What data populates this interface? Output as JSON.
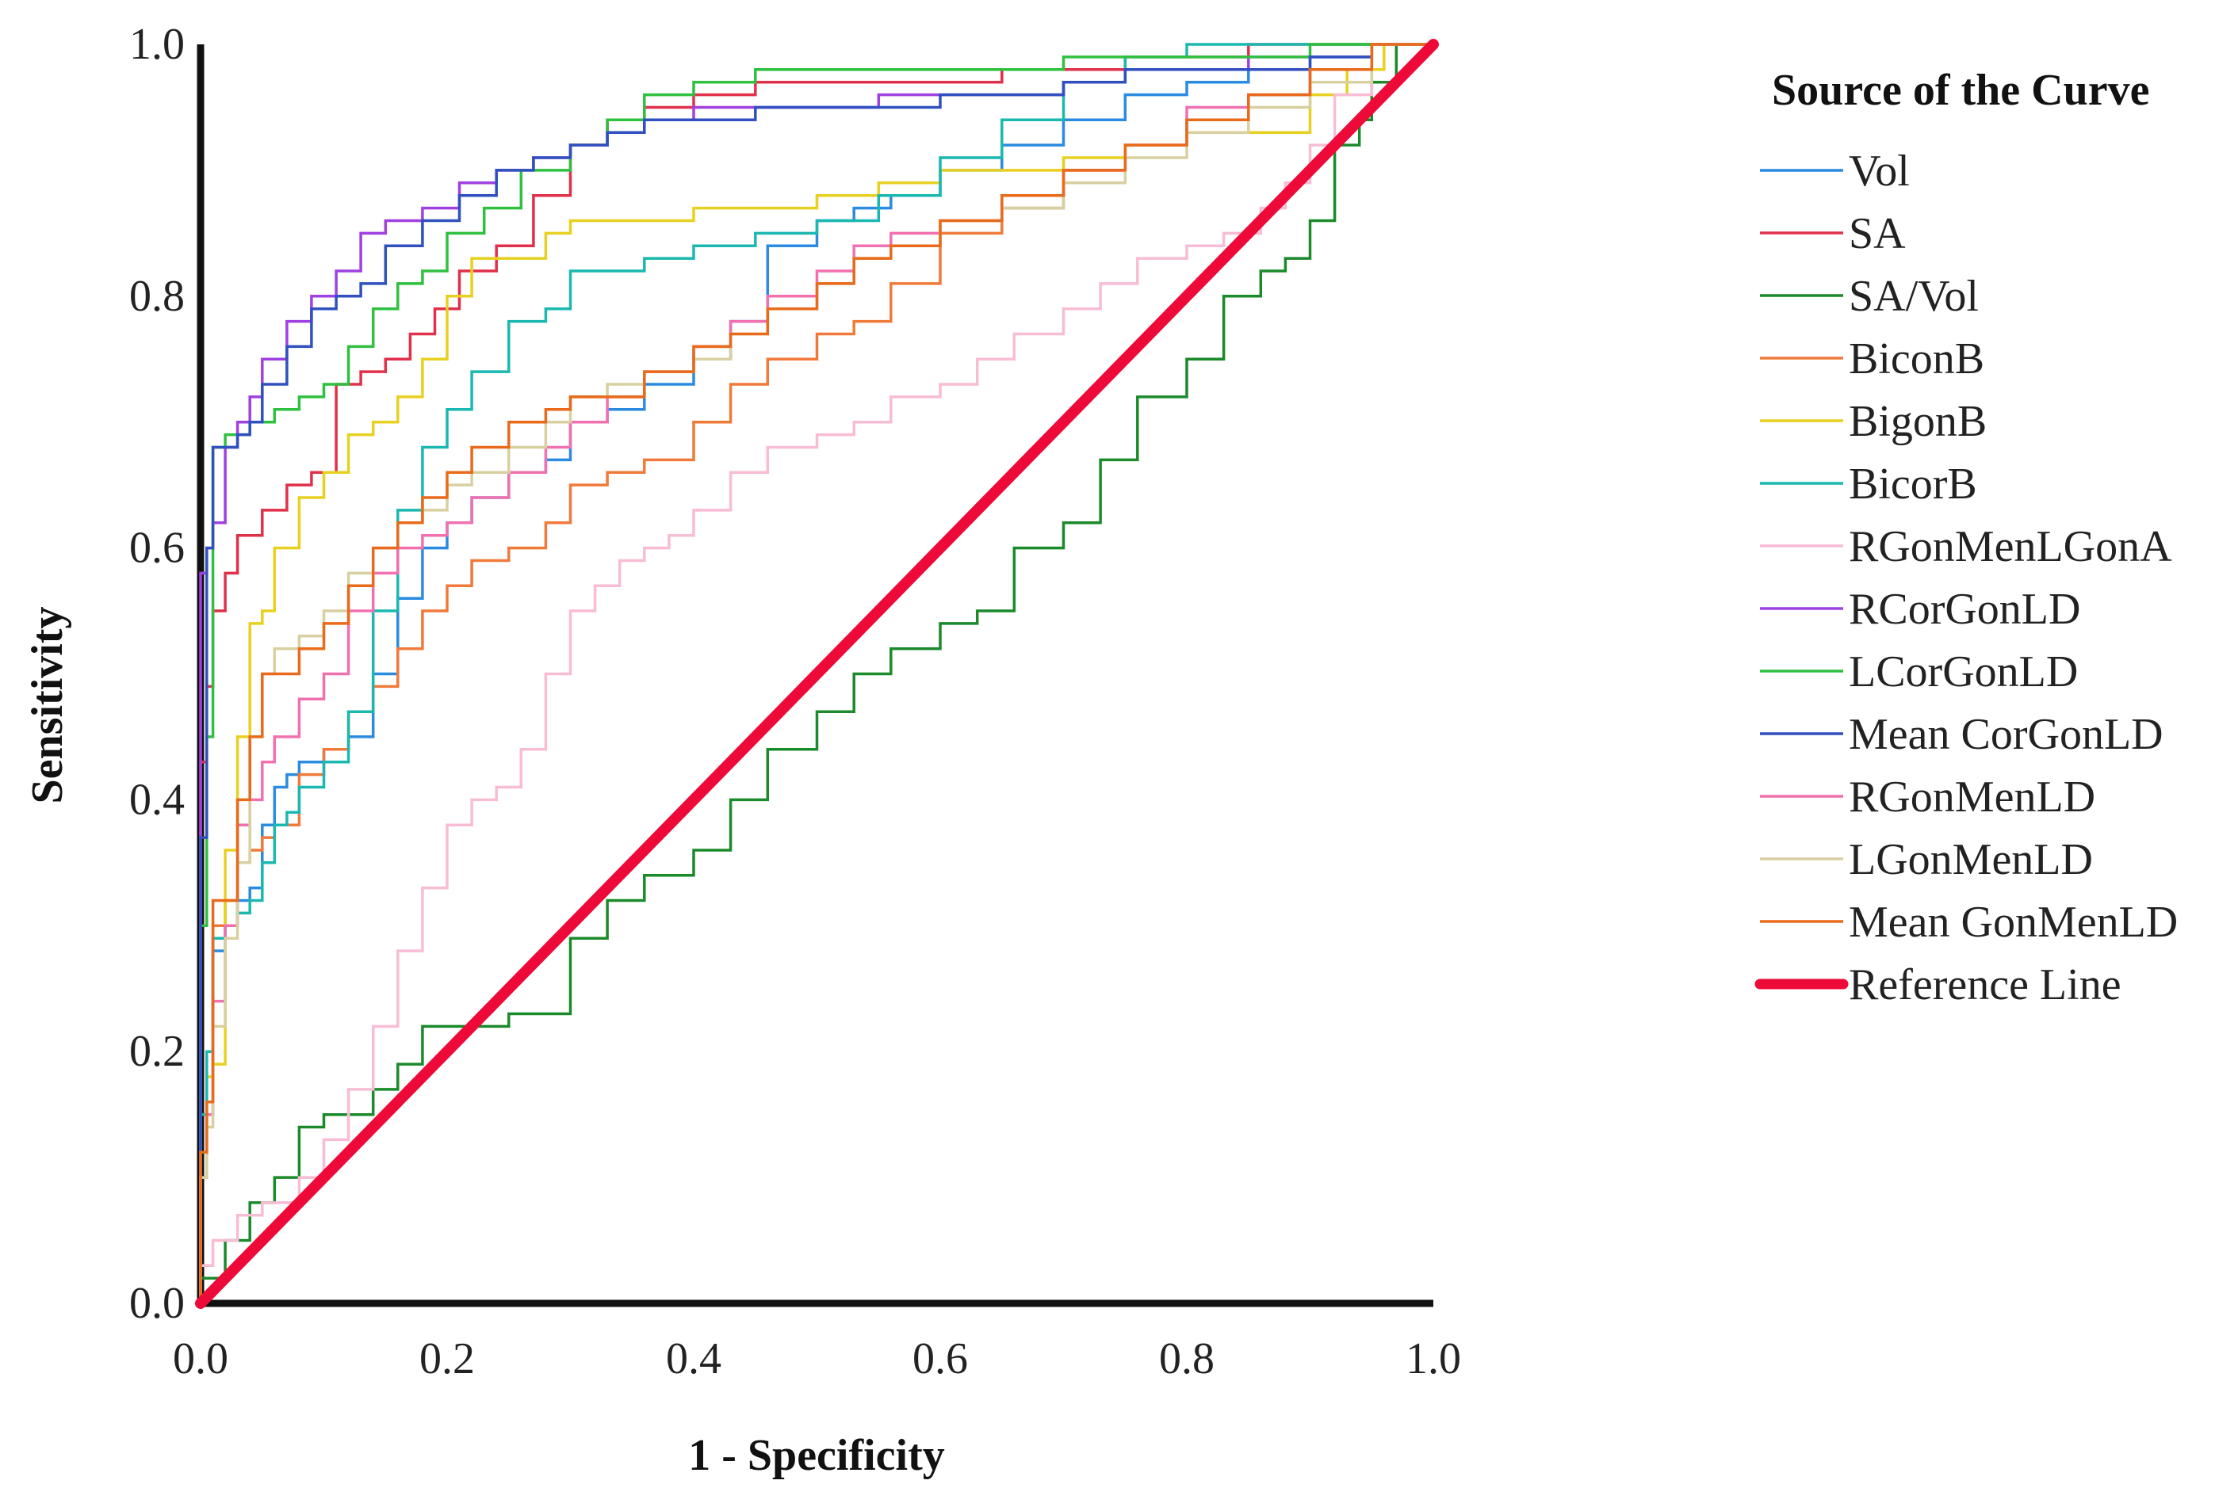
{
  "chart_data": {
    "type": "line",
    "title": "",
    "xlabel": "1 - Specificity",
    "ylabel": "Sensitivity",
    "xlim": [
      0,
      1
    ],
    "ylim": [
      0,
      1
    ],
    "x_ticks": [
      "0.0",
      "0.2",
      "0.4",
      "0.6",
      "0.8",
      "1.0"
    ],
    "y_ticks": [
      "0.0",
      "0.2",
      "0.4",
      "0.6",
      "0.8",
      "1.0"
    ],
    "legend_title": "Source of the Curve",
    "legend_position": "right",
    "series": [
      {
        "name": "Vol",
        "color": "#2a8be0",
        "x": [
          0,
          0.005,
          0.01,
          0.02,
          0.03,
          0.04,
          0.05,
          0.06,
          0.07,
          0.08,
          0.1,
          0.12,
          0.14,
          0.16,
          0.18,
          0.2,
          0.22,
          0.25,
          0.28,
          0.3,
          0.33,
          0.36,
          0.4,
          0.43,
          0.46,
          0.5,
          0.53,
          0.56,
          0.6,
          0.65,
          0.7,
          0.75,
          0.8,
          0.85,
          0.9,
          0.95,
          1.0
        ],
        "y": [
          0,
          0.12,
          0.15,
          0.28,
          0.3,
          0.32,
          0.33,
          0.38,
          0.41,
          0.42,
          0.43,
          0.44,
          0.45,
          0.5,
          0.56,
          0.6,
          0.62,
          0.64,
          0.66,
          0.67,
          0.7,
          0.71,
          0.73,
          0.75,
          0.78,
          0.84,
          0.86,
          0.87,
          0.88,
          0.9,
          0.92,
          0.94,
          0.96,
          0.97,
          0.98,
          0.99,
          1.0
        ]
      },
      {
        "name": "SA",
        "color": "#e0304a",
        "x": [
          0,
          0.005,
          0.01,
          0.02,
          0.03,
          0.05,
          0.07,
          0.09,
          0.11,
          0.13,
          0.15,
          0.17,
          0.19,
          0.21,
          0.24,
          0.27,
          0.3,
          0.33,
          0.36,
          0.4,
          0.45,
          0.5,
          0.55,
          0.6,
          0.65,
          0.7,
          0.75,
          0.8,
          0.85,
          0.9,
          0.95,
          1.0
        ],
        "y": [
          0,
          0.43,
          0.49,
          0.55,
          0.58,
          0.61,
          0.63,
          0.65,
          0.66,
          0.73,
          0.74,
          0.75,
          0.77,
          0.79,
          0.82,
          0.84,
          0.88,
          0.92,
          0.94,
          0.95,
          0.96,
          0.97,
          0.97,
          0.97,
          0.97,
          0.98,
          0.98,
          0.99,
          0.99,
          1.0,
          1.0,
          1.0
        ]
      },
      {
        "name": "SA/Vol",
        "color": "#1a8a2a",
        "x": [
          0,
          0.02,
          0.04,
          0.06,
          0.08,
          0.1,
          0.12,
          0.14,
          0.16,
          0.18,
          0.2,
          0.25,
          0.3,
          0.33,
          0.36,
          0.4,
          0.43,
          0.46,
          0.5,
          0.53,
          0.56,
          0.6,
          0.63,
          0.66,
          0.7,
          0.73,
          0.76,
          0.8,
          0.83,
          0.86,
          0.88,
          0.9,
          0.92,
          0.94,
          0.95,
          0.97,
          1.0
        ],
        "y": [
          0,
          0.02,
          0.05,
          0.08,
          0.1,
          0.14,
          0.15,
          0.15,
          0.17,
          0.19,
          0.22,
          0.22,
          0.23,
          0.29,
          0.32,
          0.34,
          0.36,
          0.4,
          0.44,
          0.47,
          0.5,
          0.52,
          0.54,
          0.55,
          0.6,
          0.62,
          0.67,
          0.72,
          0.75,
          0.8,
          0.82,
          0.83,
          0.86,
          0.92,
          0.94,
          0.97,
          1.0
        ]
      },
      {
        "name": "BiconB",
        "color": "#f07a3a",
        "x": [
          0,
          0.005,
          0.01,
          0.02,
          0.03,
          0.04,
          0.05,
          0.06,
          0.08,
          0.1,
          0.12,
          0.14,
          0.16,
          0.18,
          0.2,
          0.22,
          0.25,
          0.28,
          0.3,
          0.33,
          0.36,
          0.4,
          0.43,
          0.46,
          0.5,
          0.53,
          0.56,
          0.6,
          0.65,
          0.7,
          0.75,
          0.8,
          0.85,
          0.9,
          0.95,
          1.0
        ],
        "y": [
          0,
          0.12,
          0.16,
          0.3,
          0.32,
          0.35,
          0.36,
          0.37,
          0.38,
          0.42,
          0.44,
          0.47,
          0.49,
          0.52,
          0.55,
          0.57,
          0.59,
          0.6,
          0.62,
          0.65,
          0.66,
          0.67,
          0.7,
          0.73,
          0.75,
          0.77,
          0.78,
          0.81,
          0.85,
          0.87,
          0.9,
          0.92,
          0.94,
          0.96,
          0.98,
          1.0
        ]
      },
      {
        "name": "BigonB",
        "color": "#e8d020",
        "x": [
          0,
          0.005,
          0.01,
          0.02,
          0.03,
          0.04,
          0.05,
          0.06,
          0.08,
          0.1,
          0.12,
          0.14,
          0.16,
          0.18,
          0.2,
          0.22,
          0.25,
          0.28,
          0.3,
          0.33,
          0.36,
          0.4,
          0.45,
          0.5,
          0.55,
          0.6,
          0.65,
          0.7,
          0.75,
          0.8,
          0.85,
          0.9,
          0.93,
          0.96,
          1.0
        ],
        "y": [
          0,
          0.15,
          0.18,
          0.19,
          0.36,
          0.45,
          0.54,
          0.55,
          0.6,
          0.64,
          0.66,
          0.69,
          0.7,
          0.72,
          0.75,
          0.8,
          0.83,
          0.83,
          0.85,
          0.86,
          0.86,
          0.86,
          0.87,
          0.87,
          0.88,
          0.89,
          0.9,
          0.9,
          0.91,
          0.92,
          0.93,
          0.93,
          0.96,
          0.98,
          1.0
        ]
      },
      {
        "name": "BicorB",
        "color": "#1ab8b0",
        "x": [
          0,
          0.005,
          0.01,
          0.02,
          0.03,
          0.04,
          0.05,
          0.06,
          0.07,
          0.08,
          0.1,
          0.12,
          0.14,
          0.16,
          0.18,
          0.2,
          0.22,
          0.25,
          0.28,
          0.3,
          0.33,
          0.36,
          0.4,
          0.45,
          0.5,
          0.55,
          0.6,
          0.65,
          0.7,
          0.75,
          0.8,
          0.85,
          0.9,
          0.95,
          1.0
        ],
        "y": [
          0,
          0.15,
          0.2,
          0.29,
          0.3,
          0.31,
          0.32,
          0.35,
          0.38,
          0.39,
          0.41,
          0.43,
          0.47,
          0.55,
          0.63,
          0.68,
          0.71,
          0.74,
          0.78,
          0.79,
          0.82,
          0.82,
          0.83,
          0.84,
          0.85,
          0.86,
          0.88,
          0.91,
          0.94,
          0.97,
          0.99,
          1.0,
          1.0,
          1.0,
          1.0
        ]
      },
      {
        "name": "RGonMenLGonA",
        "color": "#f8bcd4",
        "x": [
          0,
          0.01,
          0.03,
          0.05,
          0.08,
          0.1,
          0.12,
          0.14,
          0.16,
          0.18,
          0.2,
          0.22,
          0.24,
          0.26,
          0.28,
          0.3,
          0.32,
          0.34,
          0.36,
          0.38,
          0.4,
          0.43,
          0.46,
          0.5,
          0.53,
          0.56,
          0.6,
          0.63,
          0.66,
          0.7,
          0.73,
          0.76,
          0.8,
          0.83,
          0.86,
          0.88,
          0.9,
          0.92,
          0.95,
          1.0
        ],
        "y": [
          0,
          0.03,
          0.05,
          0.07,
          0.08,
          0.1,
          0.13,
          0.17,
          0.22,
          0.28,
          0.33,
          0.38,
          0.4,
          0.41,
          0.44,
          0.5,
          0.55,
          0.57,
          0.59,
          0.6,
          0.61,
          0.63,
          0.66,
          0.68,
          0.69,
          0.7,
          0.72,
          0.73,
          0.75,
          0.77,
          0.79,
          0.81,
          0.83,
          0.84,
          0.85,
          0.87,
          0.89,
          0.92,
          0.96,
          1.0
        ]
      },
      {
        "name": "RCorGonLD",
        "color": "#a040e0",
        "x": [
          0,
          0.005,
          0.01,
          0.02,
          0.03,
          0.04,
          0.05,
          0.07,
          0.09,
          0.11,
          0.13,
          0.15,
          0.18,
          0.21,
          0.24,
          0.27,
          0.3,
          0.33,
          0.36,
          0.4,
          0.45,
          0.5,
          0.55,
          0.6,
          0.65,
          0.7,
          0.75,
          0.8,
          0.85,
          0.9,
          0.95,
          1.0
        ],
        "y": [
          0,
          0.58,
          0.6,
          0.62,
          0.68,
          0.7,
          0.72,
          0.75,
          0.78,
          0.8,
          0.82,
          0.85,
          0.86,
          0.87,
          0.89,
          0.9,
          0.91,
          0.92,
          0.93,
          0.94,
          0.95,
          0.95,
          0.95,
          0.96,
          0.96,
          0.96,
          0.97,
          0.98,
          0.98,
          0.99,
          0.99,
          1.0
        ]
      },
      {
        "name": "LCorGonLD",
        "color": "#30c040",
        "x": [
          0,
          0.005,
          0.01,
          0.02,
          0.04,
          0.06,
          0.08,
          0.1,
          0.12,
          0.14,
          0.16,
          0.18,
          0.2,
          0.23,
          0.26,
          0.3,
          0.33,
          0.36,
          0.4,
          0.45,
          0.5,
          0.55,
          0.6,
          0.65,
          0.7,
          0.75,
          0.8,
          0.85,
          0.9,
          0.95,
          1.0
        ],
        "y": [
          0,
          0.3,
          0.45,
          0.68,
          0.69,
          0.7,
          0.71,
          0.72,
          0.73,
          0.76,
          0.79,
          0.81,
          0.82,
          0.85,
          0.87,
          0.9,
          0.92,
          0.94,
          0.96,
          0.97,
          0.98,
          0.98,
          0.98,
          0.98,
          0.98,
          0.99,
          0.99,
          0.99,
          0.99,
          1.0,
          1.0
        ]
      },
      {
        "name": "Mean CorGonLD",
        "color": "#3050c0",
        "x": [
          0,
          0.005,
          0.01,
          0.02,
          0.03,
          0.04,
          0.05,
          0.07,
          0.09,
          0.11,
          0.13,
          0.15,
          0.18,
          0.21,
          0.24,
          0.27,
          0.3,
          0.33,
          0.36,
          0.4,
          0.45,
          0.5,
          0.55,
          0.6,
          0.65,
          0.7,
          0.75,
          0.8,
          0.85,
          0.9,
          0.95,
          1.0
        ],
        "y": [
          0,
          0.37,
          0.6,
          0.68,
          0.68,
          0.69,
          0.7,
          0.73,
          0.76,
          0.79,
          0.8,
          0.81,
          0.84,
          0.86,
          0.88,
          0.9,
          0.91,
          0.92,
          0.93,
          0.94,
          0.94,
          0.95,
          0.95,
          0.95,
          0.96,
          0.96,
          0.97,
          0.98,
          0.98,
          0.98,
          0.99,
          1.0
        ]
      },
      {
        "name": "RGonMenLD",
        "color": "#f070b0",
        "x": [
          0,
          0.005,
          0.01,
          0.02,
          0.03,
          0.04,
          0.05,
          0.06,
          0.08,
          0.1,
          0.12,
          0.14,
          0.16,
          0.18,
          0.2,
          0.22,
          0.25,
          0.28,
          0.3,
          0.33,
          0.36,
          0.4,
          0.43,
          0.46,
          0.5,
          0.53,
          0.56,
          0.6,
          0.65,
          0.7,
          0.75,
          0.8,
          0.85,
          0.9,
          0.95,
          1.0
        ],
        "y": [
          0,
          0.1,
          0.15,
          0.24,
          0.3,
          0.38,
          0.4,
          0.43,
          0.45,
          0.48,
          0.5,
          0.55,
          0.58,
          0.6,
          0.61,
          0.62,
          0.64,
          0.66,
          0.68,
          0.7,
          0.72,
          0.74,
          0.76,
          0.78,
          0.8,
          0.82,
          0.84,
          0.85,
          0.86,
          0.88,
          0.9,
          0.92,
          0.95,
          0.96,
          0.98,
          1.0
        ]
      },
      {
        "name": "LGonMenLD",
        "color": "#d8d0a0",
        "x": [
          0,
          0.005,
          0.01,
          0.02,
          0.03,
          0.04,
          0.05,
          0.06,
          0.08,
          0.1,
          0.12,
          0.14,
          0.16,
          0.18,
          0.2,
          0.22,
          0.25,
          0.28,
          0.3,
          0.33,
          0.36,
          0.4,
          0.43,
          0.46,
          0.5,
          0.53,
          0.56,
          0.6,
          0.65,
          0.7,
          0.75,
          0.8,
          0.85,
          0.9,
          0.95,
          1.0
        ],
        "y": [
          0,
          0.1,
          0.14,
          0.22,
          0.29,
          0.35,
          0.45,
          0.5,
          0.52,
          0.53,
          0.55,
          0.58,
          0.6,
          0.62,
          0.63,
          0.65,
          0.66,
          0.68,
          0.7,
          0.72,
          0.73,
          0.74,
          0.75,
          0.77,
          0.79,
          0.81,
          0.83,
          0.84,
          0.86,
          0.87,
          0.89,
          0.91,
          0.93,
          0.95,
          0.97,
          1.0
        ]
      },
      {
        "name": "Mean GonMenLD",
        "color": "#e86a1a",
        "x": [
          0,
          0.005,
          0.01,
          0.02,
          0.03,
          0.04,
          0.05,
          0.06,
          0.08,
          0.1,
          0.12,
          0.14,
          0.16,
          0.18,
          0.2,
          0.22,
          0.25,
          0.28,
          0.3,
          0.33,
          0.36,
          0.4,
          0.43,
          0.46,
          0.5,
          0.53,
          0.56,
          0.6,
          0.65,
          0.7,
          0.75,
          0.8,
          0.85,
          0.9,
          0.95,
          1.0
        ],
        "y": [
          0,
          0.12,
          0.16,
          0.32,
          0.32,
          0.4,
          0.45,
          0.5,
          0.5,
          0.52,
          0.54,
          0.57,
          0.6,
          0.62,
          0.64,
          0.66,
          0.68,
          0.7,
          0.71,
          0.72,
          0.72,
          0.74,
          0.76,
          0.77,
          0.79,
          0.81,
          0.83,
          0.84,
          0.86,
          0.88,
          0.9,
          0.92,
          0.94,
          0.96,
          0.98,
          1.0
        ]
      },
      {
        "name": "Reference Line",
        "color": "#ee0a38",
        "reference": true,
        "x": [
          0,
          1
        ],
        "y": [
          0,
          1
        ]
      }
    ]
  }
}
